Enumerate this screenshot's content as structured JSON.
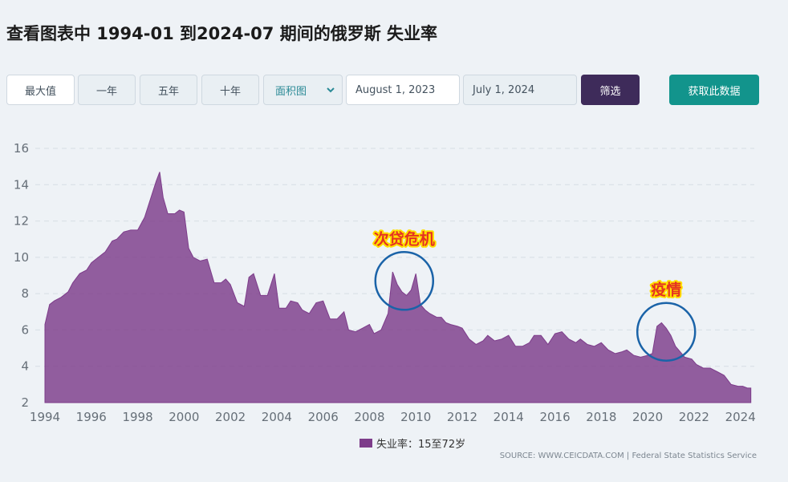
{
  "page": {
    "title": "查看图表中 1994-01 到2024-07 期间的俄罗斯 失业率"
  },
  "toolbar": {
    "max_label": "最大值",
    "one_year_label": "一年",
    "five_year_label": "五年",
    "ten_year_label": "十年",
    "chart_type_selected": "面积图",
    "start_date": "August 1, 2023",
    "end_date": "July 1, 2024",
    "filter_label": "筛选",
    "get_data_label": "获取此数据"
  },
  "colors": {
    "area": "#7d3c8a",
    "circle": "#1a63a8",
    "annotation_text": "#e53222",
    "annotation_outline": "#ffe000",
    "filter_button": "#3e2b5a",
    "get_data_button": "#12948c"
  },
  "source_text": "SOURCE: WWW.CEICDATA.COM | Federal State Statistics Service",
  "chart_data": {
    "type": "area",
    "title": "",
    "xlabel": "",
    "ylabel": "",
    "xlim": [
      1994,
      2024.6
    ],
    "ylim": [
      2,
      16
    ],
    "grid": true,
    "legend_position": "bottom",
    "x_ticks": [
      1994,
      1996,
      1998,
      2000,
      2002,
      2004,
      2006,
      2008,
      2010,
      2012,
      2014,
      2016,
      2018,
      2020,
      2022,
      2024
    ],
    "y_ticks": [
      2,
      4,
      6,
      8,
      10,
      12,
      14,
      16
    ],
    "series": [
      {
        "name": "失业率：15至72岁",
        "x": [
          1994.0,
          1994.2,
          1994.4,
          1994.7,
          1995.0,
          1995.2,
          1995.5,
          1995.8,
          1996.0,
          1996.3,
          1996.6,
          1996.9,
          1997.1,
          1997.4,
          1997.7,
          1998.0,
          1998.3,
          1998.5,
          1998.8,
          1998.95,
          1999.1,
          1999.3,
          1999.6,
          1999.8,
          2000.0,
          2000.2,
          2000.4,
          2000.7,
          2001.0,
          2001.3,
          2001.6,
          2001.8,
          2002.0,
          2002.3,
          2002.6,
          2002.8,
          2003.0,
          2003.3,
          2003.6,
          2003.9,
          2004.1,
          2004.4,
          2004.6,
          2004.9,
          2005.1,
          2005.4,
          2005.7,
          2006.0,
          2006.3,
          2006.6,
          2006.9,
          2007.1,
          2007.4,
          2007.7,
          2008.0,
          2008.2,
          2008.5,
          2008.8,
          2009.0,
          2009.2,
          2009.4,
          2009.6,
          2009.8,
          2010.0,
          2010.2,
          2010.4,
          2010.6,
          2010.9,
          2011.1,
          2011.3,
          2011.5,
          2011.8,
          2012.0,
          2012.3,
          2012.6,
          2012.9,
          2013.1,
          2013.4,
          2013.7,
          2014.0,
          2014.3,
          2014.6,
          2014.9,
          2015.1,
          2015.4,
          2015.7,
          2016.0,
          2016.3,
          2016.6,
          2016.9,
          2017.1,
          2017.4,
          2017.7,
          2018.0,
          2018.3,
          2018.6,
          2018.9,
          2019.1,
          2019.4,
          2019.7,
          2020.0,
          2020.2,
          2020.4,
          2020.6,
          2020.8,
          2021.0,
          2021.2,
          2021.4,
          2021.6,
          2021.9,
          2022.1,
          2022.4,
          2022.7,
          2023.0,
          2023.3,
          2023.6,
          2023.9,
          2024.1,
          2024.3,
          2024.45
        ],
        "values": [
          6.3,
          7.4,
          7.6,
          7.8,
          8.1,
          8.6,
          9.1,
          9.3,
          9.7,
          10.0,
          10.3,
          10.9,
          11.0,
          11.4,
          11.5,
          11.5,
          12.2,
          13.0,
          14.2,
          14.7,
          13.3,
          12.4,
          12.4,
          12.6,
          12.5,
          10.5,
          10.0,
          9.8,
          9.9,
          8.6,
          8.6,
          8.8,
          8.5,
          7.5,
          7.3,
          8.9,
          9.1,
          7.9,
          7.9,
          9.1,
          7.2,
          7.2,
          7.6,
          7.5,
          7.1,
          6.9,
          7.5,
          7.6,
          6.6,
          6.6,
          7.0,
          6.0,
          5.9,
          6.1,
          6.3,
          5.8,
          6.0,
          6.9,
          9.2,
          8.5,
          8.1,
          7.9,
          8.2,
          9.1,
          7.4,
          7.1,
          6.9,
          6.7,
          6.7,
          6.4,
          6.3,
          6.2,
          6.1,
          5.5,
          5.2,
          5.4,
          5.7,
          5.4,
          5.5,
          5.7,
          5.1,
          5.1,
          5.3,
          5.7,
          5.7,
          5.2,
          5.8,
          5.9,
          5.5,
          5.3,
          5.5,
          5.2,
          5.1,
          5.3,
          4.9,
          4.7,
          4.8,
          4.9,
          4.6,
          4.5,
          4.6,
          4.7,
          6.2,
          6.4,
          6.1,
          5.7,
          5.1,
          4.8,
          4.5,
          4.4,
          4.1,
          3.9,
          3.9,
          3.7,
          3.5,
          3.0,
          2.9,
          2.9,
          2.8,
          2.8
        ]
      }
    ],
    "annotations": [
      {
        "text": "次贷危机",
        "x": 2009.5,
        "y": 8.7
      },
      {
        "text": "疫情",
        "x": 2020.8,
        "y": 5.9
      }
    ]
  }
}
